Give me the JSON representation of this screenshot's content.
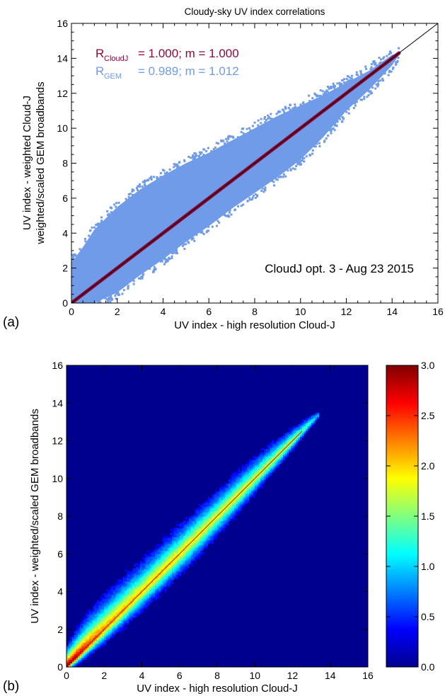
{
  "chart_data": [
    {
      "panel_label": "(a)",
      "type": "scatter",
      "title": "Cloudy-sky UV index correlations",
      "xlabel": "UV index - high resolution Cloud-J",
      "ylabel_line1": "UV index - weighted Cloud-J",
      "ylabel_line2": "weighted/scaled GEM broadbands",
      "xlim": [
        0,
        16
      ],
      "ylim": [
        0,
        16
      ],
      "xticks": [
        "0",
        "2",
        "4",
        "6",
        "8",
        "10",
        "12",
        "14",
        "16"
      ],
      "yticks": [
        "0",
        "2",
        "4",
        "6",
        "8",
        "10",
        "12",
        "14",
        "16"
      ],
      "grid": false,
      "one_to_one_line": true,
      "annotation": "CloudJ opt. 3 - Aug 23 2015",
      "series": [
        {
          "name": "CloudJ",
          "label_main": "R",
          "label_sub": "CloudJ",
          "stats": "= 1.000; m = 1.000",
          "R": 1.0,
          "m": 1.0,
          "color": "#8b0a3a",
          "x_range": [
            0,
            14.3
          ]
        },
        {
          "name": "GEM",
          "label_main": "R",
          "label_sub": "GEM",
          "stats": "= 0.989; m = 1.012",
          "R": 0.989,
          "m": 1.012,
          "color": "#6f9be8",
          "envelope_x": [
            0,
            0.5,
            1,
            2,
            3,
            4,
            5,
            6,
            7,
            8,
            9,
            10,
            11,
            12,
            13,
            14,
            14.3
          ],
          "envelope_upper": [
            2.3,
            3.2,
            4.2,
            5.5,
            6.5,
            7.3,
            8.0,
            8.6,
            9.3,
            10.0,
            10.7,
            11.3,
            11.9,
            12.6,
            13.3,
            14.2,
            14.3
          ],
          "envelope_lower": [
            0,
            0,
            0,
            0.6,
            1.6,
            2.5,
            3.5,
            4.4,
            5.4,
            6.3,
            7.2,
            8.2,
            9.5,
            11.0,
            12.2,
            13.6,
            14.2
          ]
        }
      ]
    },
    {
      "panel_label": "(b)",
      "type": "heatmap",
      "xlabel": "UV index - high resolution Cloud-J",
      "ylabel": "UV index - weighted/scaled GEM broadbands",
      "xlim": [
        0,
        16
      ],
      "ylim": [
        0,
        16
      ],
      "xticks": [
        "0",
        "2",
        "4",
        "6",
        "8",
        "10",
        "12",
        "14",
        "16"
      ],
      "yticks": [
        "0",
        "2",
        "4",
        "6",
        "8",
        "10",
        "12",
        "14",
        "16"
      ],
      "colorbar": {
        "min": 0.0,
        "max": 3.0,
        "ticks": [
          "0.0",
          "0.5",
          "1.0",
          "1.5",
          "2.0",
          "2.5",
          "3.0"
        ],
        "colormap": "jet"
      },
      "density_ridge": {
        "x": [
          0,
          0.5,
          1,
          2,
          3,
          4,
          5,
          6,
          7,
          8,
          9,
          10,
          11,
          12,
          13,
          13.3
        ],
        "peak": [
          3.0,
          2.8,
          2.5,
          2.2,
          2.1,
          2.0,
          2.0,
          1.95,
          1.9,
          1.85,
          1.85,
          1.8,
          1.75,
          1.7,
          1.2,
          0.9
        ],
        "spread_up": [
          1.6,
          2.0,
          2.4,
          2.6,
          2.6,
          2.5,
          2.4,
          2.3,
          2.2,
          2.1,
          2.0,
          1.8,
          1.5,
          1.1,
          0.7,
          0.5
        ],
        "spread_dn": [
          0.4,
          0.6,
          0.8,
          1.2,
          1.4,
          1.6,
          1.7,
          1.8,
          1.8,
          1.7,
          1.5,
          1.3,
          1.1,
          0.8,
          0.5,
          0.4
        ]
      }
    }
  ]
}
